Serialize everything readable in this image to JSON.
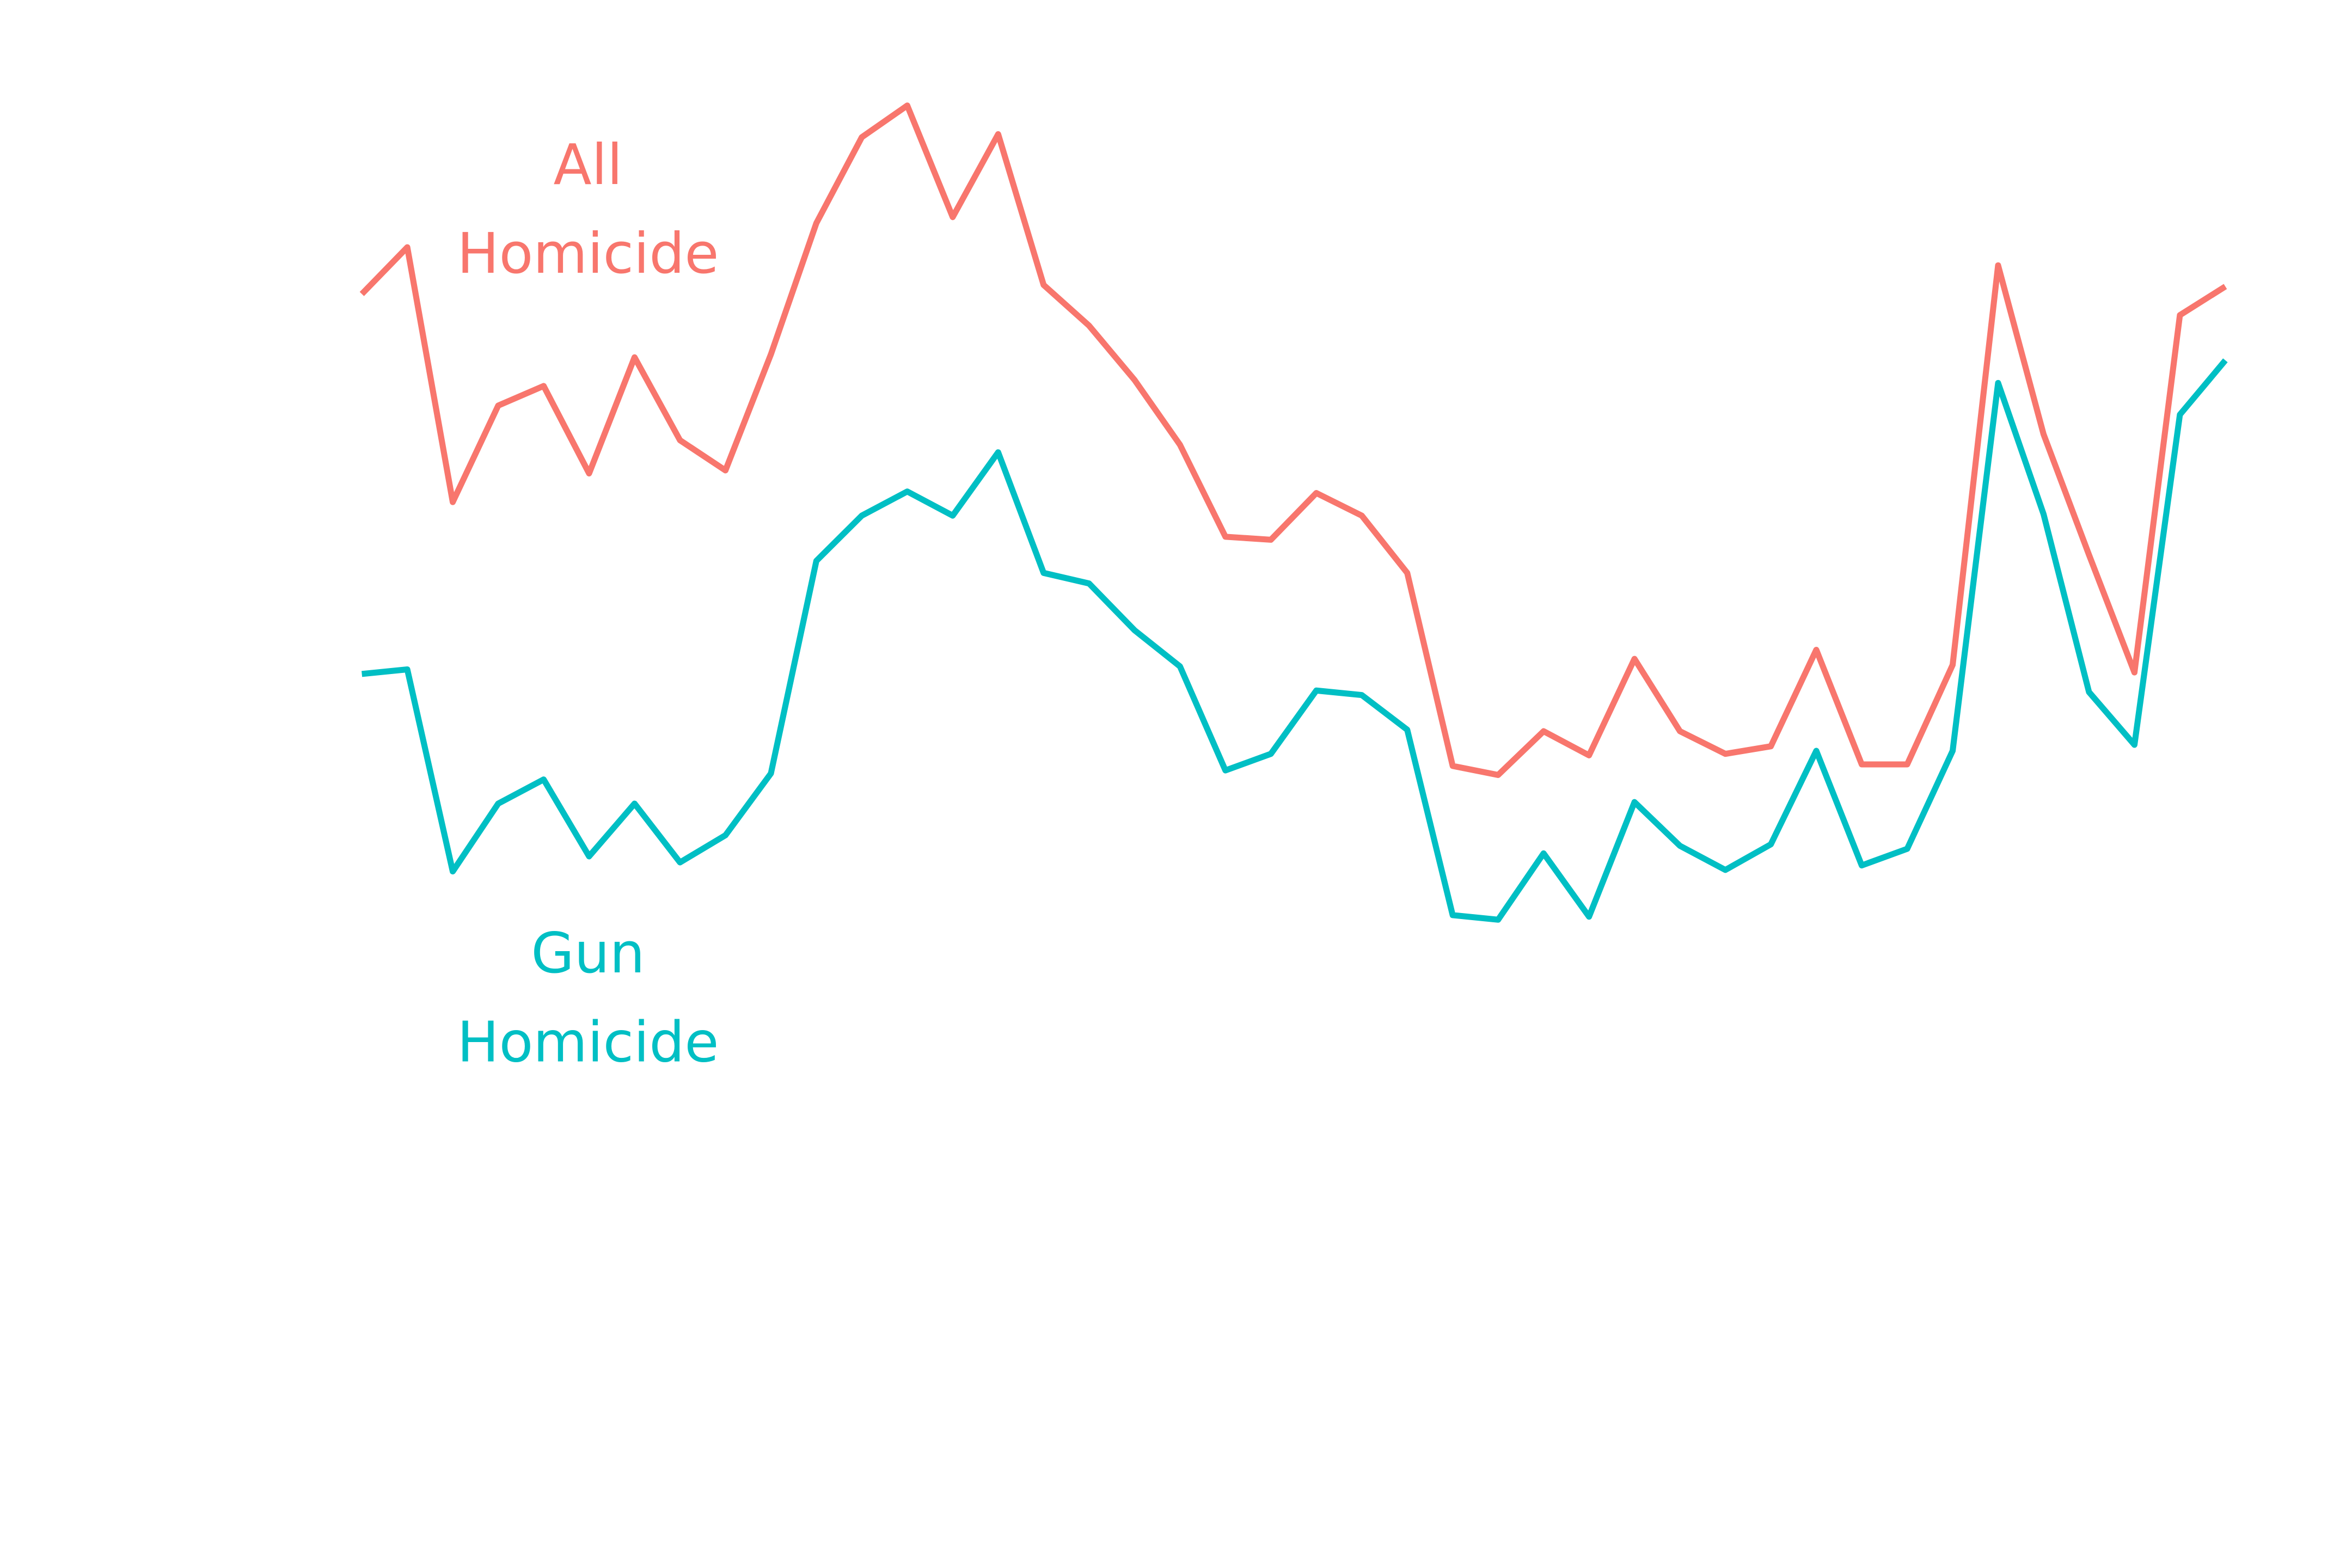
{
  "chart_data": {
    "type": "line",
    "categories": [
      null,
      null,
      null,
      null,
      null,
      null,
      null,
      null,
      null,
      null,
      null,
      null,
      null,
      null,
      null,
      null,
      null,
      null,
      null,
      null,
      null,
      null,
      null,
      null,
      null,
      null,
      null,
      null,
      null,
      null,
      null,
      null,
      null,
      null,
      null,
      null,
      null,
      null,
      null,
      null,
      null,
      null
    ],
    "ylim": [
      0,
      1040
    ],
    "series": [
      {
        "name": "All Homicide",
        "color": "#f8766d",
        "values": [
          845,
          876,
          707,
          771,
          784,
          726,
          803,
          748,
          728,
          805,
          892,
          949,
          970,
          896,
          951,
          851,
          824,
          788,
          745,
          684,
          682,
          713,
          698,
          660,
          532,
          526,
          555,
          539,
          603,
          555,
          540,
          545,
          609,
          533,
          533,
          599,
          864,
          752,
          672,
          594,
          831,
          850
        ]
      },
      {
        "name": "Gun Homicide",
        "color": "#00bfc4",
        "values": [
          593,
          596,
          462,
          507,
          523,
          472,
          507,
          468,
          486,
          527,
          668,
          698,
          714,
          698,
          740,
          660,
          653,
          622,
          598,
          529,
          540,
          582,
          579,
          556,
          433,
          430,
          474,
          432,
          508,
          479,
          463,
          480,
          542,
          466,
          477,
          542,
          786,
          699,
          581,
          546,
          765,
          801
        ]
      }
    ]
  }
}
